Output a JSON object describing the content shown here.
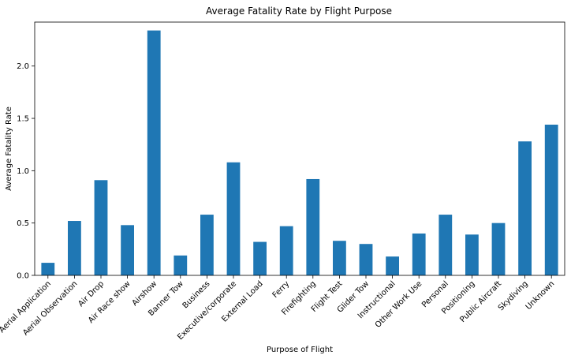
{
  "chart_data": {
    "type": "bar",
    "title": "Average Fatality Rate by Flight Purpose",
    "xlabel": "Purpose of Flight",
    "ylabel": "Average Fatality Rate",
    "ylim": [
      0,
      2.42
    ],
    "yticks": [
      "0.0",
      "0.5",
      "1.0",
      "1.5",
      "2.0"
    ],
    "grid": false,
    "bar_color": "#1f77b4",
    "categories": [
      "Aerial Application",
      "Aerial Observation",
      "Air Drop",
      "Air Race show",
      "Airshow",
      "Banner Tow",
      "Business",
      "Executive/corporate",
      "External Load",
      "Ferry",
      "Firefighting",
      "Flight Test",
      "Glider Tow",
      "Instructional",
      "Other Work Use",
      "Personal",
      "Positioning",
      "Public Aircraft",
      "Skydiving",
      "Unknown"
    ],
    "values": [
      0.12,
      0.52,
      0.91,
      0.48,
      2.34,
      0.19,
      0.58,
      1.08,
      0.32,
      0.47,
      0.92,
      0.33,
      0.3,
      0.18,
      0.4,
      0.58,
      0.39,
      0.5,
      1.28,
      1.44
    ]
  }
}
